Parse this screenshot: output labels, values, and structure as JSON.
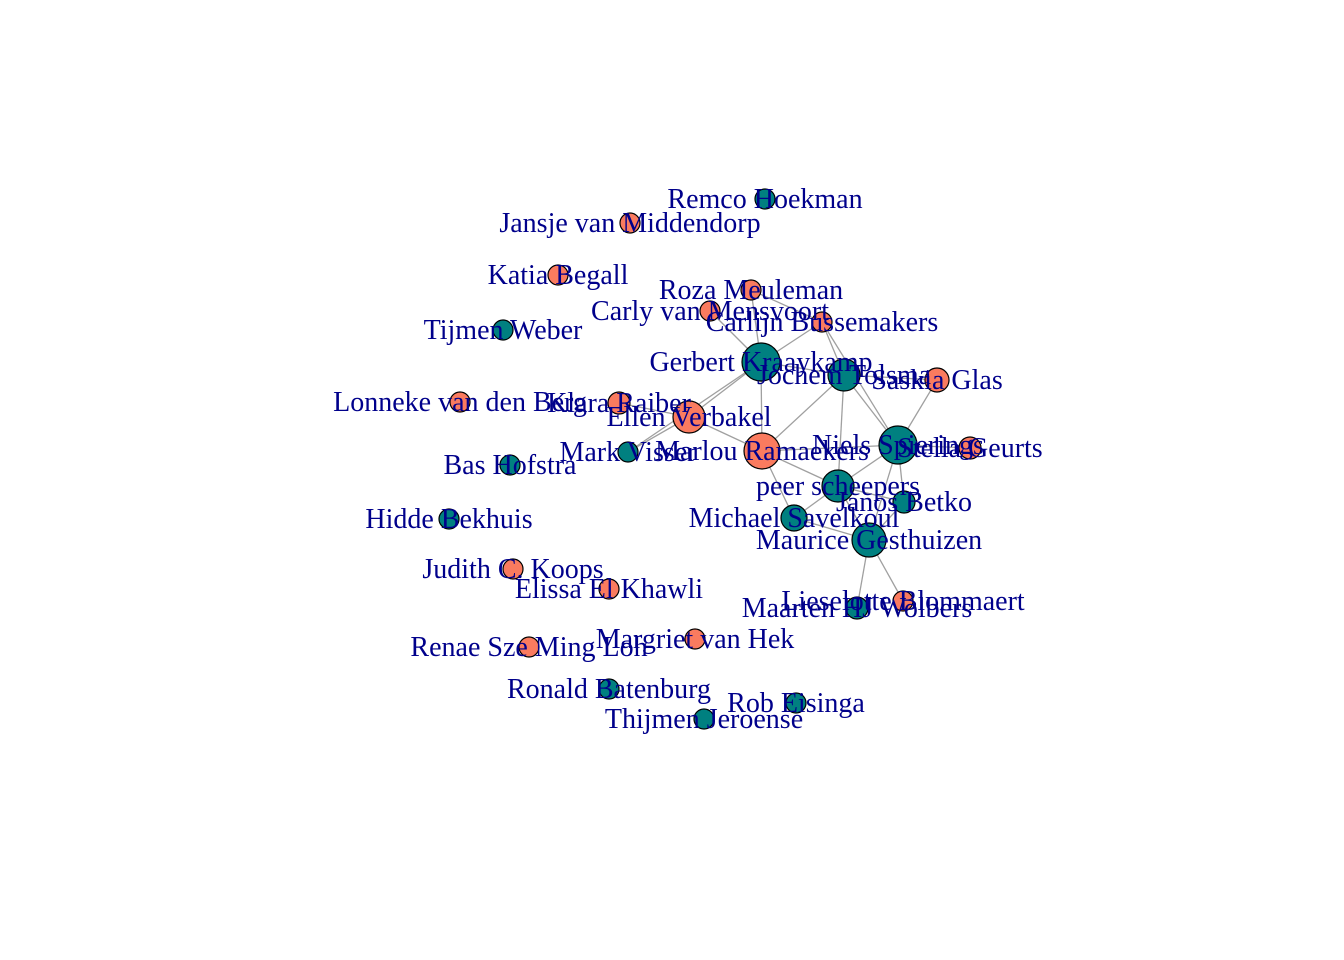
{
  "graph": {
    "label_color": "#00008B",
    "edge_color": "#A0A0A0",
    "node_stroke": "#000000",
    "group_colors": {
      "teal": "#008080",
      "salmon": "#FA7B5F"
    },
    "nodes": [
      {
        "id": "remco",
        "label": "Remco Hoekman",
        "group": "teal"
      },
      {
        "id": "jansje",
        "label": "Jansje van Middendorp",
        "group": "salmon"
      },
      {
        "id": "katia",
        "label": "Katia Begall",
        "group": "salmon"
      },
      {
        "id": "roza",
        "label": "Roza Meuleman",
        "group": "salmon"
      },
      {
        "id": "carly",
        "label": "Carly van Mensvoort",
        "group": "salmon"
      },
      {
        "id": "carlijn",
        "label": "Carlijn Bussemakers",
        "group": "salmon"
      },
      {
        "id": "tijmen",
        "label": "Tijmen Weber",
        "group": "teal"
      },
      {
        "id": "gerbert",
        "label": "Gerbert Kraaykamp",
        "group": "teal"
      },
      {
        "id": "jochem",
        "label": "Jochem Tolsma",
        "group": "teal"
      },
      {
        "id": "saskia",
        "label": "Saskia Glas",
        "group": "salmon"
      },
      {
        "id": "lonneke",
        "label": "Lonneke van den Berg",
        "group": "salmon"
      },
      {
        "id": "klara",
        "label": "Klara Raiber",
        "group": "salmon"
      },
      {
        "id": "ellen",
        "label": "Ellen Verbakel",
        "group": "salmon"
      },
      {
        "id": "mark",
        "label": "Mark Visser",
        "group": "teal"
      },
      {
        "id": "marlou",
        "label": "Marlou Ramaekers",
        "group": "salmon"
      },
      {
        "id": "niels",
        "label": "Niels Spierings",
        "group": "teal"
      },
      {
        "id": "stella",
        "label": "Stella Geurts",
        "group": "salmon"
      },
      {
        "id": "bas",
        "label": "Bas Hofstra",
        "group": "teal"
      },
      {
        "id": "peer",
        "label": "peer scheepers",
        "group": "teal"
      },
      {
        "id": "janos",
        "label": "Janos Betko",
        "group": "teal"
      },
      {
        "id": "hidde",
        "label": "Hidde Bekhuis",
        "group": "teal"
      },
      {
        "id": "michael",
        "label": "Michael Savelkoul",
        "group": "teal"
      },
      {
        "id": "maurice",
        "label": "Maurice Gesthuizen",
        "group": "teal"
      },
      {
        "id": "judith",
        "label": "Judith C. Koops",
        "group": "salmon"
      },
      {
        "id": "elissa",
        "label": "Elissa El Khawli",
        "group": "salmon"
      },
      {
        "id": "lieselotte",
        "label": "Lieselotte Blommaert",
        "group": "salmon"
      },
      {
        "id": "maarten",
        "label": "Maarten HJ Wolbers",
        "group": "teal"
      },
      {
        "id": "renae",
        "label": "Renae Sze Ming Loh",
        "group": "salmon"
      },
      {
        "id": "margriet",
        "label": "Margriet van Hek",
        "group": "salmon"
      },
      {
        "id": "ronald",
        "label": "Ronald Batenburg",
        "group": "teal"
      },
      {
        "id": "rob",
        "label": "Rob Eisinga",
        "group": "teal"
      },
      {
        "id": "thijmen",
        "label": "Thijmen Jeroense",
        "group": "teal"
      }
    ],
    "edges": [
      [
        "gerbert",
        "carly"
      ],
      [
        "gerbert",
        "roza"
      ],
      [
        "gerbert",
        "carlijn"
      ],
      [
        "gerbert",
        "jochem"
      ],
      [
        "gerbert",
        "ellen"
      ],
      [
        "gerbert",
        "marlou"
      ],
      [
        "gerbert",
        "mark"
      ],
      [
        "roza",
        "carlijn"
      ],
      [
        "carlijn",
        "jochem"
      ],
      [
        "carlijn",
        "niels"
      ],
      [
        "jochem",
        "saskia"
      ],
      [
        "jochem",
        "niels"
      ],
      [
        "jochem",
        "marlou"
      ],
      [
        "jochem",
        "peer"
      ],
      [
        "saskia",
        "niels"
      ],
      [
        "ellen",
        "klara"
      ],
      [
        "ellen",
        "mark"
      ],
      [
        "ellen",
        "marlou"
      ],
      [
        "marlou",
        "peer"
      ],
      [
        "marlou",
        "niels"
      ],
      [
        "marlou",
        "michael"
      ],
      [
        "niels",
        "stella"
      ],
      [
        "niels",
        "peer"
      ],
      [
        "niels",
        "janos"
      ],
      [
        "niels",
        "maurice"
      ],
      [
        "peer",
        "michael"
      ],
      [
        "peer",
        "maurice"
      ],
      [
        "peer",
        "janos"
      ],
      [
        "maurice",
        "michael"
      ],
      [
        "maurice",
        "janos"
      ],
      [
        "maurice",
        "lieselotte"
      ],
      [
        "maurice",
        "maarten"
      ]
    ]
  }
}
